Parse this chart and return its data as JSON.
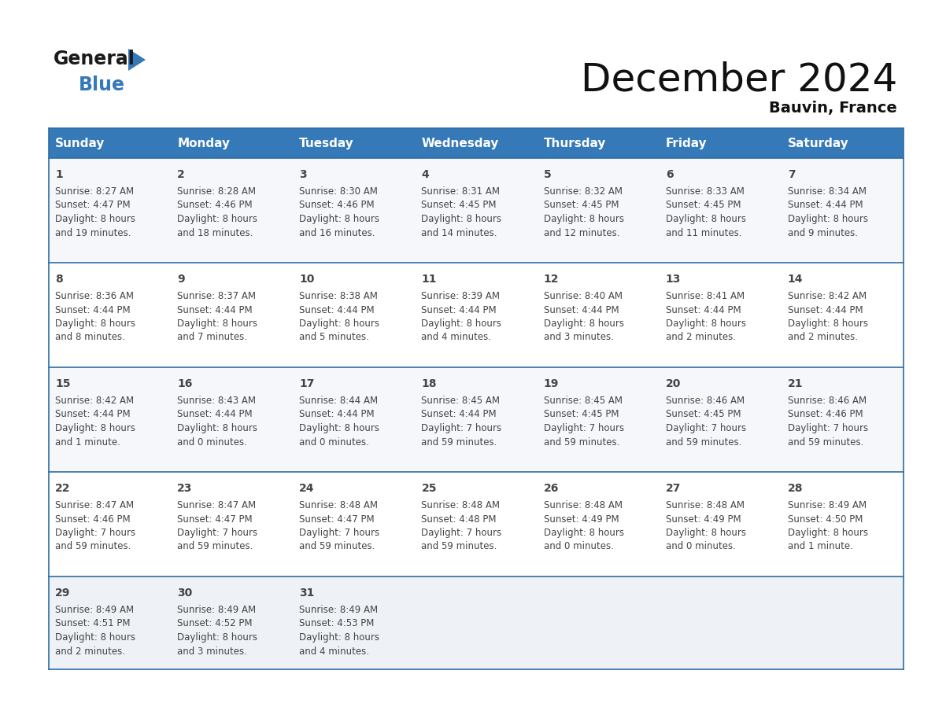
{
  "title": "December 2024",
  "subtitle": "Bauvin, France",
  "header_bg": "#3579b8",
  "header_text": "#ffffff",
  "row1_bg": "#f5f7fa",
  "row2_bg": "#ffffff",
  "row3_bg": "#f5f7fa",
  "row4_bg": "#ffffff",
  "row5_bg": "#eef1f5",
  "border_color": "#2e6da4",
  "text_color": "#444444",
  "day_headers": [
    "Sunday",
    "Monday",
    "Tuesday",
    "Wednesday",
    "Thursday",
    "Friday",
    "Saturday"
  ],
  "calendar": [
    [
      {
        "day": "1",
        "sunrise": "8:27 AM",
        "sunset": "4:47 PM",
        "dl1": "8 hours",
        "dl2": "and 19 minutes."
      },
      {
        "day": "2",
        "sunrise": "8:28 AM",
        "sunset": "4:46 PM",
        "dl1": "8 hours",
        "dl2": "and 18 minutes."
      },
      {
        "day": "3",
        "sunrise": "8:30 AM",
        "sunset": "4:46 PM",
        "dl1": "8 hours",
        "dl2": "and 16 minutes."
      },
      {
        "day": "4",
        "sunrise": "8:31 AM",
        "sunset": "4:45 PM",
        "dl1": "8 hours",
        "dl2": "and 14 minutes."
      },
      {
        "day": "5",
        "sunrise": "8:32 AM",
        "sunset": "4:45 PM",
        "dl1": "8 hours",
        "dl2": "and 12 minutes."
      },
      {
        "day": "6",
        "sunrise": "8:33 AM",
        "sunset": "4:45 PM",
        "dl1": "8 hours",
        "dl2": "and 11 minutes."
      },
      {
        "day": "7",
        "sunrise": "8:34 AM",
        "sunset": "4:44 PM",
        "dl1": "8 hours",
        "dl2": "and 9 minutes."
      }
    ],
    [
      {
        "day": "8",
        "sunrise": "8:36 AM",
        "sunset": "4:44 PM",
        "dl1": "8 hours",
        "dl2": "and 8 minutes."
      },
      {
        "day": "9",
        "sunrise": "8:37 AM",
        "sunset": "4:44 PM",
        "dl1": "8 hours",
        "dl2": "and 7 minutes."
      },
      {
        "day": "10",
        "sunrise": "8:38 AM",
        "sunset": "4:44 PM",
        "dl1": "8 hours",
        "dl2": "and 5 minutes."
      },
      {
        "day": "11",
        "sunrise": "8:39 AM",
        "sunset": "4:44 PM",
        "dl1": "8 hours",
        "dl2": "and 4 minutes."
      },
      {
        "day": "12",
        "sunrise": "8:40 AM",
        "sunset": "4:44 PM",
        "dl1": "8 hours",
        "dl2": "and 3 minutes."
      },
      {
        "day": "13",
        "sunrise": "8:41 AM",
        "sunset": "4:44 PM",
        "dl1": "8 hours",
        "dl2": "and 2 minutes."
      },
      {
        "day": "14",
        "sunrise": "8:42 AM",
        "sunset": "4:44 PM",
        "dl1": "8 hours",
        "dl2": "and 2 minutes."
      }
    ],
    [
      {
        "day": "15",
        "sunrise": "8:42 AM",
        "sunset": "4:44 PM",
        "dl1": "8 hours",
        "dl2": "and 1 minute."
      },
      {
        "day": "16",
        "sunrise": "8:43 AM",
        "sunset": "4:44 PM",
        "dl1": "8 hours",
        "dl2": "and 0 minutes."
      },
      {
        "day": "17",
        "sunrise": "8:44 AM",
        "sunset": "4:44 PM",
        "dl1": "8 hours",
        "dl2": "and 0 minutes."
      },
      {
        "day": "18",
        "sunrise": "8:45 AM",
        "sunset": "4:44 PM",
        "dl1": "7 hours",
        "dl2": "and 59 minutes."
      },
      {
        "day": "19",
        "sunrise": "8:45 AM",
        "sunset": "4:45 PM",
        "dl1": "7 hours",
        "dl2": "and 59 minutes."
      },
      {
        "day": "20",
        "sunrise": "8:46 AM",
        "sunset": "4:45 PM",
        "dl1": "7 hours",
        "dl2": "and 59 minutes."
      },
      {
        "day": "21",
        "sunrise": "8:46 AM",
        "sunset": "4:46 PM",
        "dl1": "7 hours",
        "dl2": "and 59 minutes."
      }
    ],
    [
      {
        "day": "22",
        "sunrise": "8:47 AM",
        "sunset": "4:46 PM",
        "dl1": "7 hours",
        "dl2": "and 59 minutes."
      },
      {
        "day": "23",
        "sunrise": "8:47 AM",
        "sunset": "4:47 PM",
        "dl1": "7 hours",
        "dl2": "and 59 minutes."
      },
      {
        "day": "24",
        "sunrise": "8:48 AM",
        "sunset": "4:47 PM",
        "dl1": "7 hours",
        "dl2": "and 59 minutes."
      },
      {
        "day": "25",
        "sunrise": "8:48 AM",
        "sunset": "4:48 PM",
        "dl1": "7 hours",
        "dl2": "and 59 minutes."
      },
      {
        "day": "26",
        "sunrise": "8:48 AM",
        "sunset": "4:49 PM",
        "dl1": "8 hours",
        "dl2": "and 0 minutes."
      },
      {
        "day": "27",
        "sunrise": "8:48 AM",
        "sunset": "4:49 PM",
        "dl1": "8 hours",
        "dl2": "and 0 minutes."
      },
      {
        "day": "28",
        "sunrise": "8:49 AM",
        "sunset": "4:50 PM",
        "dl1": "8 hours",
        "dl2": "and 1 minute."
      }
    ],
    [
      {
        "day": "29",
        "sunrise": "8:49 AM",
        "sunset": "4:51 PM",
        "dl1": "8 hours",
        "dl2": "and 2 minutes."
      },
      {
        "day": "30",
        "sunrise": "8:49 AM",
        "sunset": "4:52 PM",
        "dl1": "8 hours",
        "dl2": "and 3 minutes."
      },
      {
        "day": "31",
        "sunrise": "8:49 AM",
        "sunset": "4:53 PM",
        "dl1": "8 hours",
        "dl2": "and 4 minutes."
      },
      null,
      null,
      null,
      null
    ]
  ],
  "logo_general_color": "#1a1a1a",
  "logo_blue_color": "#3579b8",
  "logo_triangle_color": "#3579b8",
  "title_fontsize": 36,
  "subtitle_fontsize": 14,
  "header_fontsize": 11,
  "day_num_fontsize": 10,
  "cell_text_fontsize": 8.5
}
